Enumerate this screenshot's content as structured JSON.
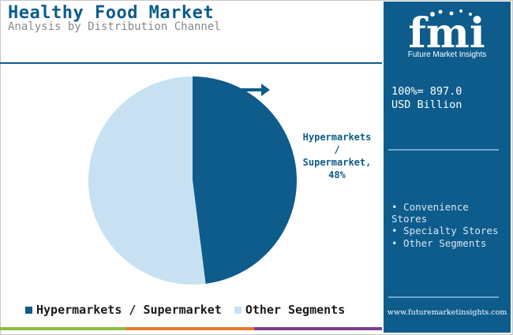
{
  "header": {
    "title": "Healthy Food Market",
    "subtitle": "Analysis by Distribution Channel"
  },
  "chart_data": {
    "type": "pie",
    "title": "Healthy Food Market",
    "subtitle": "Analysis by Distribution Channel",
    "slices": [
      {
        "label": "Hypermarkets / Supermarket",
        "value": 48,
        "color": "#0d5c8c"
      },
      {
        "label": "Other Segments",
        "value": 52,
        "color": "#c8e1f2"
      }
    ],
    "callout": {
      "lines": [
        "Hypermarkets",
        "/",
        "Supermarket,",
        "48%"
      ]
    },
    "legend": {
      "position": "bottom",
      "items": [
        "Hypermarkets / Supermarket",
        "Other Segments"
      ]
    }
  },
  "sidebar": {
    "logo_text": "Future Market Insights",
    "total_value": "100%= 897.0\nUSD Billion",
    "other_segments": [
      "• Convenience Stores",
      "• Specialty Stores",
      "• Other Segments"
    ],
    "website": "www.futuremarketinsights.com"
  },
  "colors": {
    "primary": "#0d5c8c",
    "secondary": "#c8e1f2",
    "bar_green": "#8bbf3d",
    "bar_orange": "#e07a2c",
    "bar_purple": "#7a3f8f"
  }
}
